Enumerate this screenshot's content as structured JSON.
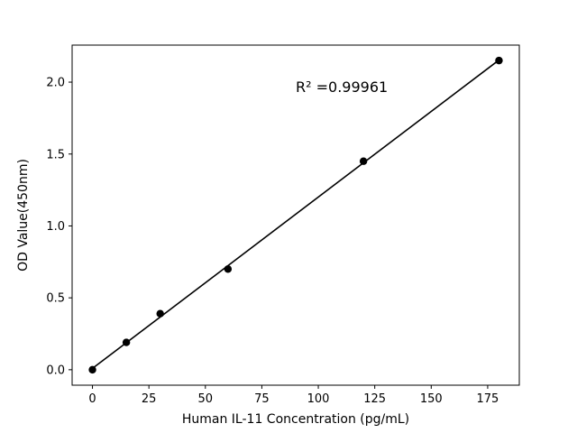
{
  "figure": {
    "background": "#ffffff"
  },
  "chart_data": {
    "type": "scatter",
    "title": "",
    "xlabel": "Human IL-11 Concentration (pg/mL)",
    "ylabel": "OD Value(450nm)",
    "x": [
      0,
      15,
      30,
      60,
      120,
      180
    ],
    "y": [
      0.0,
      0.19,
      0.39,
      0.7,
      1.45,
      2.15
    ],
    "xlim": [
      -9,
      189
    ],
    "ylim": [
      -0.1075,
      2.2575
    ],
    "xticks": [
      0,
      25,
      50,
      75,
      100,
      125,
      150,
      175
    ],
    "xtick_labels": [
      "0",
      "25",
      "50",
      "75",
      "100",
      "125",
      "150",
      "175"
    ],
    "yticks": [
      0.0,
      0.5,
      1.0,
      1.5,
      2.0
    ],
    "ytick_labels": [
      "0.0",
      "0.5",
      "1.0",
      "1.5",
      "2.0"
    ],
    "grid": false,
    "legend": "none",
    "marker_color": "#000000",
    "line_color": "#000000",
    "fit_line": true,
    "annotation": {
      "text": "R² =0.99961",
      "x": 90,
      "y": 1.93
    }
  }
}
